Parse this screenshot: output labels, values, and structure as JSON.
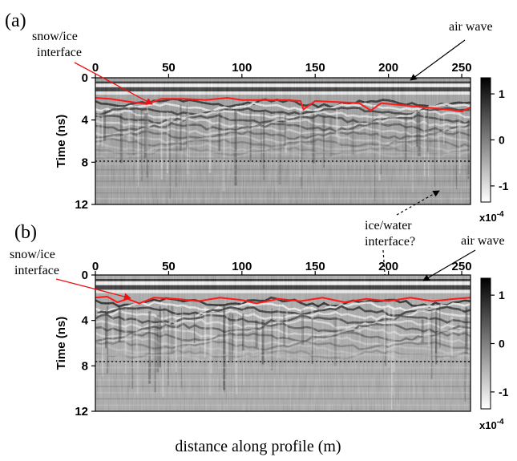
{
  "figure": {
    "xlabel": "distance along profile (m)"
  },
  "chart_data": [
    {
      "type": "heatmap",
      "panel_label": "(a)",
      "x_ticks": [
        0,
        50,
        100,
        150,
        200,
        250
      ],
      "xlim": [
        0,
        256
      ],
      "y_ticks": [
        0,
        4,
        8,
        12
      ],
      "ylim": [
        0,
        12
      ],
      "ylabel": "Time (ns)",
      "colorbar": {
        "ticks": [
          1,
          0,
          -1
        ],
        "label": "x10-4",
        "label_base": "x10",
        "label_exp": "-4"
      },
      "dotted_line_time_ns": 8,
      "annotations": {
        "snow_ice": [
          "snow/ice",
          "interface"
        ],
        "air_wave": "air wave",
        "ice_water": [
          "ice/water",
          "interface?"
        ]
      },
      "snow_ice_interface_time_ns": [
        [
          0,
          1.9
        ],
        [
          10,
          2.0
        ],
        [
          20,
          2.2
        ],
        [
          30,
          2.4
        ],
        [
          35,
          2.5
        ],
        [
          45,
          2.0
        ],
        [
          60,
          2.0
        ],
        [
          75,
          2.1
        ],
        [
          90,
          1.9
        ],
        [
          100,
          2.1
        ],
        [
          115,
          2.1
        ],
        [
          130,
          2.1
        ],
        [
          140,
          2.2
        ],
        [
          142,
          3.0
        ],
        [
          150,
          2.2
        ],
        [
          165,
          2.3
        ],
        [
          180,
          2.4
        ],
        [
          188,
          3.1
        ],
        [
          195,
          2.4
        ],
        [
          210,
          2.6
        ],
        [
          225,
          2.8
        ],
        [
          240,
          3.0
        ],
        [
          250,
          3.2
        ],
        [
          256,
          2.8
        ]
      ]
    },
    {
      "type": "heatmap",
      "panel_label": "(b)",
      "x_ticks": [
        0,
        50,
        100,
        150,
        200,
        250
      ],
      "xlim": [
        0,
        256
      ],
      "y_ticks": [
        0,
        4,
        8,
        12
      ],
      "ylim": [
        0,
        12
      ],
      "ylabel": "Time (ns)",
      "colorbar": {
        "ticks": [
          1,
          0,
          -1
        ],
        "label": "x10-4",
        "label_base": "x10",
        "label_exp": "-4"
      },
      "dotted_line_time_ns": 8,
      "annotations": {
        "snow_ice": [
          "snow/ice",
          "interface"
        ],
        "air_wave": "air wave"
      },
      "snow_ice_interface_time_ns": [
        [
          0,
          2.0
        ],
        [
          8,
          1.9
        ],
        [
          15,
          2.4
        ],
        [
          22,
          2.1
        ],
        [
          30,
          2.5
        ],
        [
          40,
          2.0
        ],
        [
          55,
          2.1
        ],
        [
          70,
          2.3
        ],
        [
          85,
          2.0
        ],
        [
          100,
          2.2
        ],
        [
          110,
          2.5
        ],
        [
          125,
          2.1
        ],
        [
          140,
          2.3
        ],
        [
          155,
          2.0
        ],
        [
          170,
          2.4
        ],
        [
          185,
          2.1
        ],
        [
          200,
          2.3
        ],
        [
          215,
          2.0
        ],
        [
          230,
          2.3
        ],
        [
          245,
          2.1
        ],
        [
          256,
          2.0
        ]
      ]
    }
  ]
}
